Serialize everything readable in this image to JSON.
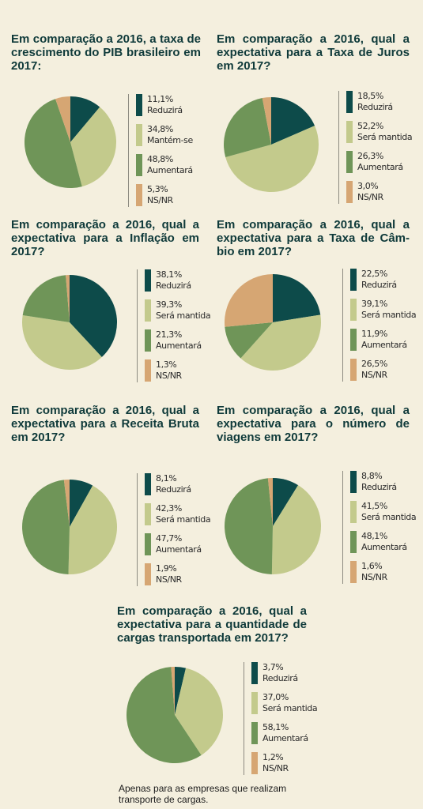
{
  "colors": {
    "reduzira": "#0d4b4a",
    "mantida": "#c3ca8c",
    "aumentara": "#6f9558",
    "nsnr": "#d6a673",
    "background": "#f4efde",
    "title": "#0f3a3a"
  },
  "chart_data": [
    {
      "type": "pie",
      "title": "Em comparação a 2016, a taxa de crescimento do PIB brasileiro em 2017:",
      "slices": [
        {
          "label": "Reduzirá",
          "value": 11.1,
          "display": "11,1%",
          "color": "#0d4b4a"
        },
        {
          "label": "Mantém-se",
          "value": 34.8,
          "display": "34,8%",
          "color": "#c3ca8c"
        },
        {
          "label": "Aumentará",
          "value": 48.8,
          "display": "48,8%",
          "color": "#6f9558"
        },
        {
          "label": "NS/NR",
          "value": 5.3,
          "display": "5,3%",
          "color": "#d6a673"
        }
      ]
    },
    {
      "type": "pie",
      "title": "Em comparação a 2016, qual a expectativa para a Taxa de Juros em 2017?",
      "slices": [
        {
          "label": "Reduzirá",
          "value": 18.5,
          "display": "18,5%",
          "color": "#0d4b4a"
        },
        {
          "label": "Será mantida",
          "value": 52.2,
          "display": "52,2%",
          "color": "#c3ca8c"
        },
        {
          "label": "Aumentará",
          "value": 26.3,
          "display": "26,3%",
          "color": "#6f9558"
        },
        {
          "label": "NS/NR",
          "value": 3.0,
          "display": "3,0%",
          "color": "#d6a673"
        }
      ]
    },
    {
      "type": "pie",
      "title": "Em comparação a 2016, qual a expectativa para a Inflação em 2017?",
      "slices": [
        {
          "label": "Reduzirá",
          "value": 38.1,
          "display": "38,1%",
          "color": "#0d4b4a"
        },
        {
          "label": "Será mantida",
          "value": 39.3,
          "display": "39,3%",
          "color": "#c3ca8c"
        },
        {
          "label": "Aumentará",
          "value": 21.3,
          "display": "21,3%",
          "color": "#6f9558"
        },
        {
          "label": "NS/NR",
          "value": 1.3,
          "display": "1,3%",
          "color": "#d6a673"
        }
      ]
    },
    {
      "type": "pie",
      "title": "Em comparação a 2016, qual a expectativa para a Taxa de Câm-bio em 2017?",
      "slices": [
        {
          "label": "Reduzirá",
          "value": 22.5,
          "display": "22,5%",
          "color": "#0d4b4a"
        },
        {
          "label": "Será mantida",
          "value": 39.1,
          "display": "39,1%",
          "color": "#c3ca8c"
        },
        {
          "label": "Aumentará",
          "value": 11.9,
          "display": "11,9%",
          "color": "#6f9558"
        },
        {
          "label": "NS/NR",
          "value": 26.5,
          "display": "26,5%",
          "color": "#d6a673"
        }
      ]
    },
    {
      "type": "pie",
      "title": "Em comparação a 2016, qual a expectativa para a Receita Bruta em 2017?",
      "slices": [
        {
          "label": "Reduzirá",
          "value": 8.1,
          "display": "8,1%",
          "color": "#0d4b4a"
        },
        {
          "label": "Será mantida",
          "value": 42.3,
          "display": "42,3%",
          "color": "#c3ca8c"
        },
        {
          "label": "Aumentará",
          "value": 47.7,
          "display": "47,7%",
          "color": "#6f9558"
        },
        {
          "label": "NS/NR",
          "value": 1.9,
          "display": "1,9%",
          "color": "#d6a673"
        }
      ]
    },
    {
      "type": "pie",
      "title": "Em comparação a 2016, qual a expectativa para o número de viagens em 2017?",
      "slices": [
        {
          "label": "Reduzirá",
          "value": 8.8,
          "display": "8,8%",
          "color": "#0d4b4a"
        },
        {
          "label": "Será mantida",
          "value": 41.5,
          "display": "41,5%",
          "color": "#c3ca8c"
        },
        {
          "label": "Aumentará",
          "value": 48.1,
          "display": "48,1%",
          "color": "#6f9558"
        },
        {
          "label": "NS/NR",
          "value": 1.6,
          "display": "1,6%",
          "color": "#d6a673"
        }
      ]
    },
    {
      "type": "pie",
      "title": "Em comparação a 2016, qual a expectativa para a quantidade de cargas transportada em 2017?",
      "slices": [
        {
          "label": "Reduzirá",
          "value": 3.7,
          "display": "3,7%",
          "color": "#0d4b4a"
        },
        {
          "label": "Será mantida",
          "value": 37.0,
          "display": "37,0%",
          "color": "#c3ca8c"
        },
        {
          "label": "Aumentará",
          "value": 58.1,
          "display": "58,1%",
          "color": "#6f9558"
        },
        {
          "label": "NS/NR",
          "value": 1.2,
          "display": "1,2%",
          "color": "#d6a673"
        }
      ]
    }
  ],
  "footnote": "Apenas para as empresas que realizam transporte de cargas."
}
